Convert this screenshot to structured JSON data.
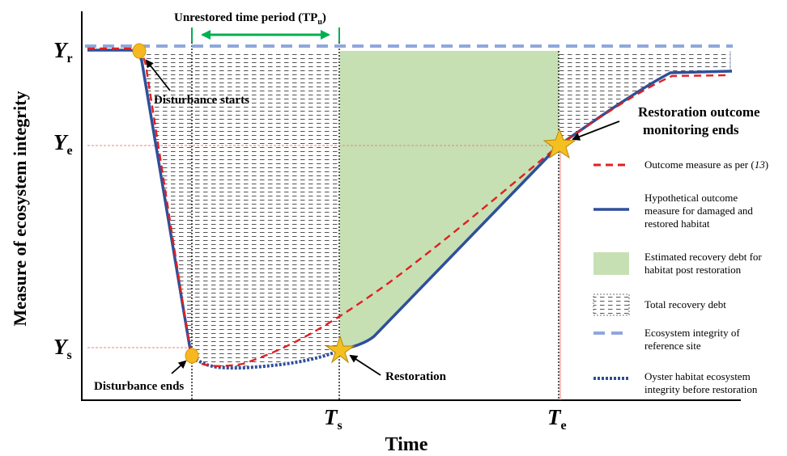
{
  "title_annotation": {
    "text": "Unrestored time period (TP",
    "subscript": "u",
    "close": ")"
  },
  "y_axis_label": "Measure of ecosystem integrity",
  "x_axis_label": "Time",
  "y_ticks": {
    "Yr": {
      "letter": "Y",
      "sub": "r"
    },
    "Ye": {
      "letter": "Y",
      "sub": "e"
    },
    "Ys": {
      "letter": "Y",
      "sub": "s"
    }
  },
  "x_ticks": {
    "Ts": {
      "letter": "T",
      "sub": "s"
    },
    "Te": {
      "letter": "T",
      "sub": "e"
    }
  },
  "annotations": {
    "disturbance_starts": "Disturbance starts",
    "disturbance_ends": "Disturbance ends",
    "restoration": "Restoration",
    "monitoring_ends_line1": "Restoration outcome",
    "monitoring_ends_line2": "monitoring ends"
  },
  "legend": {
    "outcome_measure_pre": "Outcome measure as per (",
    "outcome_measure_ref": "13",
    "outcome_measure_post": ")",
    "hypothetical_l1": "Hypothetical outcome",
    "hypothetical_l2": "measure for damaged and",
    "hypothetical_l3": "restored habitat",
    "estimated_l1": "Estimated recovery debt for",
    "estimated_l2": "habitat post restoration",
    "total": "Total recovery debt",
    "reference_l1": "Ecosystem integrity  of",
    "reference_l2": "reference site",
    "oyster_l1": "Oyster habitat ecosystem",
    "oyster_l2": "integrity  before restoration"
  },
  "colors": {
    "blue_line": "#2F4F9A",
    "red_dash": "#E02020",
    "light_blue_dash": "#8FA8DC",
    "green_fill": "#C6E0B4",
    "green_arrow": "#00B050",
    "star": "#F4C020",
    "marker_circle": "#F5B820",
    "guide_red": "#F08080"
  }
}
